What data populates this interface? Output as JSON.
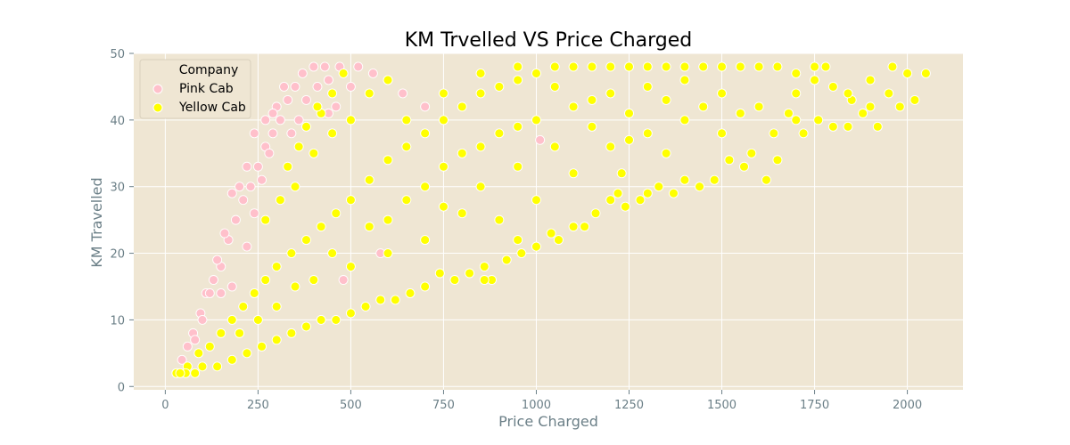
{
  "chart_data": {
    "type": "scatter",
    "title": "KM Trvelled VS Price Charged",
    "xlabel": "Price Charged",
    "ylabel": "KM Travelled",
    "xlim": [
      -85,
      2150
    ],
    "ylim": [
      -0.5,
      50
    ],
    "xticks": [
      0,
      250,
      500,
      750,
      1000,
      1250,
      1500,
      1750,
      2000
    ],
    "yticks": [
      0,
      10,
      20,
      30,
      40,
      50
    ],
    "grid": true,
    "legend_position": "top-left",
    "legend_title": "Company",
    "colors": {
      "background": "#efe6d3",
      "grid": "#ffffff",
      "tick_text": "#6b7f87"
    },
    "series": [
      {
        "name": "Pink Cab",
        "color": "#ffc0cb",
        "points": [
          [
            30,
            2
          ],
          [
            45,
            4
          ],
          [
            60,
            6
          ],
          [
            75,
            8
          ],
          [
            95,
            11
          ],
          [
            110,
            14
          ],
          [
            130,
            16
          ],
          [
            150,
            18
          ],
          [
            170,
            22
          ],
          [
            190,
            25
          ],
          [
            210,
            28
          ],
          [
            230,
            30
          ],
          [
            250,
            33
          ],
          [
            270,
            36
          ],
          [
            290,
            38
          ],
          [
            310,
            40
          ],
          [
            330,
            43
          ],
          [
            350,
            45
          ],
          [
            370,
            47
          ],
          [
            400,
            48
          ],
          [
            430,
            48
          ],
          [
            470,
            48
          ],
          [
            520,
            48
          ],
          [
            560,
            47
          ],
          [
            600,
            46
          ],
          [
            640,
            44
          ],
          [
            700,
            42
          ],
          [
            320,
            45
          ],
          [
            300,
            42
          ],
          [
            280,
            35
          ],
          [
            260,
            31
          ],
          [
            240,
            26
          ],
          [
            220,
            21
          ],
          [
            200,
            30
          ],
          [
            180,
            29
          ],
          [
            160,
            23
          ],
          [
            140,
            19
          ],
          [
            120,
            14
          ],
          [
            100,
            10
          ],
          [
            80,
            7
          ],
          [
            220,
            33
          ],
          [
            240,
            38
          ],
          [
            270,
            40
          ],
          [
            290,
            41
          ],
          [
            340,
            38
          ],
          [
            360,
            40
          ],
          [
            380,
            43
          ],
          [
            410,
            45
          ],
          [
            440,
            46
          ],
          [
            180,
            15
          ],
          [
            150,
            14
          ],
          [
            1010,
            37
          ],
          [
            580,
            20
          ],
          [
            480,
            16
          ],
          [
            440,
            41
          ],
          [
            460,
            42
          ],
          [
            500,
            45
          ]
        ]
      },
      {
        "name": "Yellow Cab",
        "color": "#ffff00",
        "points": [
          [
            30,
            2
          ],
          [
            60,
            3
          ],
          [
            90,
            5
          ],
          [
            120,
            6
          ],
          [
            150,
            8
          ],
          [
            180,
            10
          ],
          [
            210,
            12
          ],
          [
            240,
            14
          ],
          [
            270,
            16
          ],
          [
            300,
            18
          ],
          [
            340,
            20
          ],
          [
            380,
            22
          ],
          [
            420,
            24
          ],
          [
            460,
            26
          ],
          [
            500,
            28
          ],
          [
            550,
            31
          ],
          [
            600,
            34
          ],
          [
            650,
            36
          ],
          [
            700,
            38
          ],
          [
            750,
            40
          ],
          [
            800,
            42
          ],
          [
            850,
            44
          ],
          [
            900,
            45
          ],
          [
            950,
            46
          ],
          [
            1000,
            47
          ],
          [
            1050,
            48
          ],
          [
            1100,
            48
          ],
          [
            1150,
            48
          ],
          [
            1200,
            48
          ],
          [
            1250,
            48
          ],
          [
            1300,
            48
          ],
          [
            1350,
            48
          ],
          [
            1400,
            48
          ],
          [
            1450,
            48
          ],
          [
            1500,
            48
          ],
          [
            1550,
            48
          ],
          [
            1600,
            48
          ],
          [
            1650,
            48
          ],
          [
            1700,
            47
          ],
          [
            1750,
            46
          ],
          [
            1800,
            45
          ],
          [
            1850,
            43
          ],
          [
            1900,
            42
          ],
          [
            1950,
            44
          ],
          [
            2000,
            47
          ],
          [
            2020,
            43
          ],
          [
            2050,
            47
          ],
          [
            1980,
            42
          ],
          [
            1920,
            39
          ],
          [
            1880,
            41
          ],
          [
            1840,
            39
          ],
          [
            1800,
            39
          ],
          [
            1760,
            40
          ],
          [
            1720,
            38
          ],
          [
            1680,
            41
          ],
          [
            1650,
            34
          ],
          [
            1620,
            31
          ],
          [
            1580,
            35
          ],
          [
            1560,
            33
          ],
          [
            1520,
            34
          ],
          [
            1480,
            31
          ],
          [
            1440,
            30
          ],
          [
            1400,
            31
          ],
          [
            1370,
            29
          ],
          [
            1330,
            30
          ],
          [
            1300,
            29
          ],
          [
            1280,
            28
          ],
          [
            1240,
            27
          ],
          [
            1220,
            29
          ],
          [
            1200,
            28
          ],
          [
            1160,
            26
          ],
          [
            1130,
            24
          ],
          [
            1100,
            24
          ],
          [
            1060,
            22
          ],
          [
            1040,
            23
          ],
          [
            1000,
            21
          ],
          [
            960,
            20
          ],
          [
            920,
            19
          ],
          [
            880,
            16
          ],
          [
            860,
            18
          ],
          [
            820,
            17
          ],
          [
            780,
            16
          ],
          [
            740,
            17
          ],
          [
            700,
            15
          ],
          [
            660,
            14
          ],
          [
            620,
            13
          ],
          [
            580,
            13
          ],
          [
            540,
            12
          ],
          [
            500,
            11
          ],
          [
            460,
            10
          ],
          [
            420,
            10
          ],
          [
            380,
            9
          ],
          [
            340,
            8
          ],
          [
            300,
            7
          ],
          [
            260,
            6
          ],
          [
            220,
            5
          ],
          [
            180,
            4
          ],
          [
            140,
            3
          ],
          [
            100,
            3
          ],
          [
            80,
            2
          ],
          [
            55,
            2
          ],
          [
            40,
            2
          ],
          [
            350,
            30
          ],
          [
            400,
            35
          ],
          [
            450,
            38
          ],
          [
            500,
            40
          ],
          [
            550,
            44
          ],
          [
            600,
            46
          ],
          [
            420,
            41
          ],
          [
            450,
            44
          ],
          [
            480,
            47
          ],
          [
            700,
            30
          ],
          [
            800,
            35
          ],
          [
            900,
            38
          ],
          [
            1000,
            40
          ],
          [
            1100,
            42
          ],
          [
            1200,
            44
          ],
          [
            1300,
            45
          ],
          [
            1400,
            46
          ],
          [
            1500,
            44
          ],
          [
            1600,
            42
          ],
          [
            1700,
            44
          ],
          [
            1750,
            48
          ],
          [
            1780,
            48
          ],
          [
            900,
            25
          ],
          [
            1000,
            28
          ],
          [
            1100,
            32
          ],
          [
            1200,
            36
          ],
          [
            1300,
            38
          ],
          [
            1400,
            40
          ],
          [
            1500,
            38
          ],
          [
            600,
            25
          ],
          [
            700,
            22
          ],
          [
            800,
            26
          ],
          [
            500,
            18
          ],
          [
            400,
            16
          ],
          [
            300,
            12
          ],
          [
            250,
            10
          ],
          [
            200,
            8
          ],
          [
            600,
            20
          ],
          [
            750,
            27
          ],
          [
            850,
            30
          ],
          [
            950,
            33
          ],
          [
            1050,
            36
          ],
          [
            1150,
            39
          ],
          [
            1250,
            41
          ],
          [
            1350,
            43
          ],
          [
            1450,
            42
          ],
          [
            1550,
            41
          ],
          [
            650,
            40
          ],
          [
            750,
            44
          ],
          [
            850,
            47
          ],
          [
            950,
            48
          ],
          [
            1050,
            45
          ],
          [
            1150,
            43
          ],
          [
            1250,
            37
          ],
          [
            1350,
            35
          ],
          [
            350,
            15
          ],
          [
            450,
            20
          ],
          [
            550,
            24
          ],
          [
            650,
            28
          ],
          [
            750,
            33
          ],
          [
            850,
            36
          ],
          [
            950,
            39
          ],
          [
            270,
            25
          ],
          [
            310,
            28
          ],
          [
            330,
            33
          ],
          [
            360,
            36
          ],
          [
            380,
            39
          ],
          [
            410,
            42
          ],
          [
            860,
            16
          ],
          [
            950,
            22
          ],
          [
            1230,
            32
          ],
          [
            1640,
            38
          ],
          [
            1700,
            40
          ],
          [
            1840,
            44
          ],
          [
            1900,
            46
          ],
          [
            1960,
            48
          ]
        ]
      }
    ]
  }
}
